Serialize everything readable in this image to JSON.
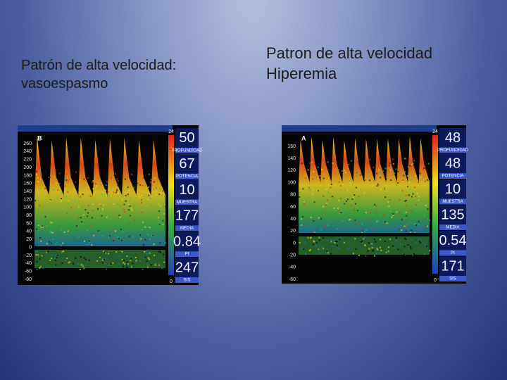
{
  "slides": [
    {
      "title_lines": [
        "Patrón de alta velocidad:",
        "vasoespasmo"
      ],
      "image": {
        "letter": "B",
        "axis_labels": [
          260,
          240,
          220,
          200,
          180,
          160,
          140,
          120,
          100,
          80,
          60,
          40,
          20,
          0,
          -20,
          -40,
          -60,
          -80
        ],
        "scale_top": 24,
        "scale_bottom": 0,
        "readouts": [
          {
            "value": 50,
            "label": "PROFUNDIDAD"
          },
          {
            "value": 67,
            "label": "POTENCIA"
          },
          {
            "value": 10,
            "label": "MUESTRA"
          },
          {
            "value": 177,
            "label": "MEDIA"
          },
          {
            "value": 0.84,
            "label": "PI"
          },
          {
            "value": 247,
            "label": "SIS"
          }
        ]
      }
    },
    {
      "title_lines": [
        "Patron de alta velocidad",
        "Hiperemia"
      ],
      "image": {
        "letter": "A",
        "axis_labels": [
          160,
          140,
          120,
          100,
          80,
          60,
          40,
          20,
          0,
          -20,
          -40,
          -60
        ],
        "scale_top": 24,
        "scale_bottom": 0,
        "readouts": [
          {
            "value": 48,
            "label": "PROFUNDIDAD"
          },
          {
            "value": 48,
            "label": "POTENCIA"
          },
          {
            "value": 10,
            "label": "MUESTRA"
          },
          {
            "value": 135,
            "label": "MEDIA"
          },
          {
            "value": 0.54,
            "label": "PI"
          },
          {
            "value": 171,
            "label": "SIS"
          }
        ]
      }
    }
  ]
}
